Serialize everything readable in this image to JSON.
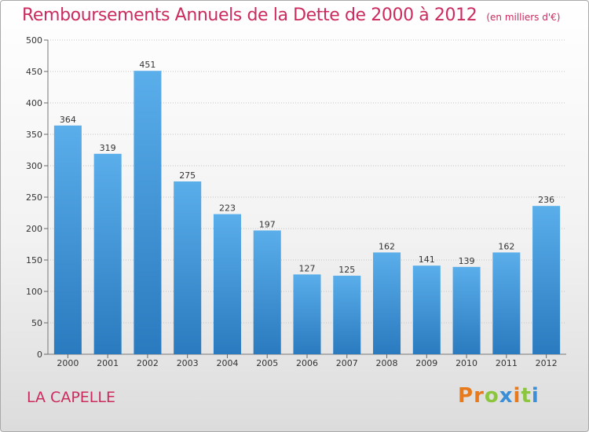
{
  "header": {
    "title": "Remboursements Annuels de la Dette de 2000 à 2012",
    "unit": "(en milliers d'€)"
  },
  "footer": {
    "commune": "LA CAPELLE",
    "logo": [
      "P",
      "r",
      "o",
      "x",
      "i",
      "t",
      "i"
    ]
  },
  "colors": {
    "accent": "#cc2b5e",
    "bar_top": "#5aaeea",
    "bar_bottom": "#2a7abf",
    "logo_letters": [
      "#e87a1c",
      "#e87a1c",
      "#8cc63f",
      "#3a8fd8",
      "#e87a1c",
      "#8cc63f",
      "#3a8fd8"
    ]
  },
  "chart_data": {
    "type": "bar",
    "title": "Remboursements Annuels de la Dette de 2000 à 2012",
    "categories": [
      "2000",
      "2001",
      "2002",
      "2003",
      "2004",
      "2005",
      "2006",
      "2007",
      "2008",
      "2009",
      "2010",
      "2011",
      "2012"
    ],
    "values": [
      364,
      319,
      451,
      275,
      223,
      197,
      127,
      125,
      162,
      141,
      139,
      162,
      236
    ],
    "ylim": [
      0,
      500
    ],
    "yticks": [
      0,
      50,
      100,
      150,
      200,
      250,
      300,
      350,
      400,
      450,
      500
    ],
    "grid": true,
    "xlabel": "",
    "ylabel": ""
  }
}
